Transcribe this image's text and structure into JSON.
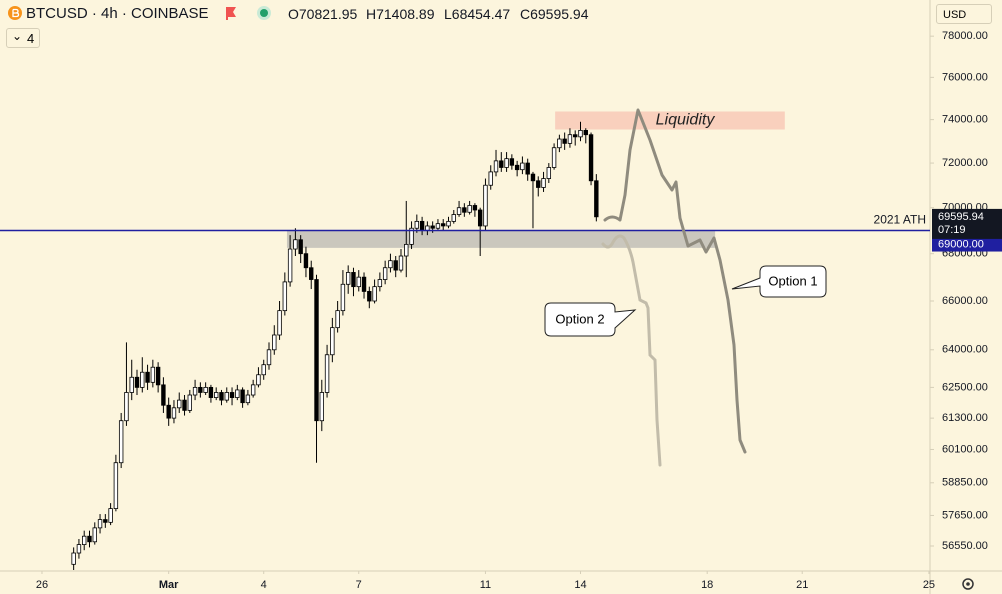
{
  "header": {
    "symbol": "BTCUSD · 4h · COINBASE",
    "open": "O70821.95",
    "high": "H71408.89",
    "low": "L68454.47",
    "close": "C69595.94",
    "indicators": "4",
    "currency": "USD"
  },
  "chart_data": {
    "type": "candlestick",
    "log_scale": true,
    "up_color": "#ffffff",
    "down_color": "#000000",
    "ylim": [
      55700,
      79800
    ],
    "yticks": [
      {
        "value": 78000,
        "label": "78000.00"
      },
      {
        "value": 76000,
        "label": "76000.00"
      },
      {
        "value": 74000,
        "label": "74000.00"
      },
      {
        "value": 72000,
        "label": "72000.00"
      },
      {
        "value": 70000,
        "label": "70000.00"
      },
      {
        "value": 68000,
        "label": "68000.00"
      },
      {
        "value": 66000,
        "label": "66000.00"
      },
      {
        "value": 64000,
        "label": "64000.00"
      },
      {
        "value": 62500,
        "label": "62500.00"
      },
      {
        "value": 61300,
        "label": "61300.00"
      },
      {
        "value": 60100,
        "label": "60100.00"
      },
      {
        "value": 58850,
        "label": "58850.00"
      },
      {
        "value": 57650,
        "label": "57650.00"
      },
      {
        "value": 56550,
        "label": "56550.00"
      }
    ],
    "xlim": [
      -7.95,
      168.2
    ],
    "xticks": [
      {
        "value": 0,
        "label": "26"
      },
      {
        "value": 24,
        "label": "Mar"
      },
      {
        "value": 42,
        "label": "4"
      },
      {
        "value": 60,
        "label": "7"
      },
      {
        "value": 84,
        "label": "11"
      },
      {
        "value": 102,
        "label": "14"
      },
      {
        "value": 126,
        "label": "18"
      },
      {
        "value": 144,
        "label": "21"
      },
      {
        "value": 168,
        "label": "25"
      }
    ],
    "x": [
      6,
      7,
      8,
      9,
      10,
      11,
      12,
      13,
      14,
      15,
      16,
      17,
      18,
      19,
      20,
      21,
      22,
      23,
      24,
      25,
      26,
      27,
      28,
      29,
      30,
      31,
      32,
      33,
      34,
      35,
      36,
      37,
      38,
      39,
      40,
      41,
      42,
      43,
      44,
      45,
      46,
      47,
      48,
      49,
      50,
      51,
      52,
      53,
      54,
      55,
      56,
      57,
      58,
      59,
      60,
      61,
      62,
      63,
      64,
      65,
      66,
      67,
      68,
      69,
      70,
      71,
      72,
      73,
      74,
      75,
      76,
      77,
      78,
      79,
      80,
      81,
      82,
      83,
      84,
      85,
      86,
      87,
      88,
      89,
      90,
      91,
      92,
      93,
      94,
      95,
      96,
      97,
      98,
      99,
      100,
      101,
      102,
      103,
      104,
      105
    ],
    "open": [
      55900,
      56300,
      56600,
      56900,
      56700,
      57200,
      57500,
      57400,
      57900,
      59600,
      61200,
      62300,
      62900,
      62500,
      63100,
      62700,
      63300,
      62600,
      61800,
      61300,
      61700,
      62000,
      61600,
      62200,
      62500,
      62300,
      62500,
      62100,
      62300,
      62000,
      62300,
      62100,
      62400,
      61900,
      62200,
      62600,
      63000,
      63400,
      64000,
      64600,
      65600,
      66800,
      68200,
      68600,
      68000,
      67400,
      66900,
      61200,
      62300,
      63800,
      64900,
      65600,
      66700,
      67200,
      66600,
      67000,
      66400,
      66000,
      66600,
      66900,
      67400,
      67700,
      67300,
      67900,
      68400,
      69100,
      69400,
      69000,
      69200,
      69100,
      69300,
      69200,
      69400,
      69700,
      70000,
      69800,
      70100,
      69900,
      69200,
      71000,
      71600,
      72100,
      71800,
      72200,
      71900,
      71700,
      72000,
      71500,
      71200,
      70900,
      71300,
      71800,
      72700,
      73100,
      72900,
      73300,
      73200,
      73500,
      73300,
      71200
    ],
    "high": [
      56500,
      56800,
      57100,
      57100,
      57400,
      57700,
      57700,
      58100,
      59900,
      61500,
      64300,
      63600,
      63200,
      63700,
      63400,
      63600,
      63500,
      62900,
      62100,
      62000,
      62300,
      62200,
      62400,
      62800,
      62700,
      62700,
      62600,
      62500,
      62400,
      62500,
      62500,
      62600,
      62500,
      62400,
      62800,
      63300,
      63600,
      64300,
      65000,
      66000,
      67200,
      68800,
      69100,
      68800,
      68300,
      67700,
      67100,
      62800,
      64200,
      65300,
      66000,
      67300,
      67500,
      67400,
      67300,
      67200,
      66600,
      66900,
      67200,
      67700,
      68000,
      67900,
      68200,
      70300,
      69400,
      69700,
      69600,
      69400,
      69400,
      69500,
      69500,
      69600,
      69900,
      70300,
      70200,
      70300,
      70200,
      70000,
      71300,
      71900,
      72600,
      72500,
      72500,
      72400,
      72100,
      72300,
      72200,
      71600,
      71400,
      71600,
      72000,
      72900,
      73300,
      73400,
      73600,
      73500,
      73900,
      73600,
      73400,
      71500
    ],
    "low": [
      55700,
      56100,
      56400,
      56500,
      56600,
      57000,
      57200,
      57300,
      57800,
      59400,
      61000,
      62000,
      62200,
      62300,
      62400,
      62500,
      62300,
      61500,
      61000,
      61100,
      61500,
      61400,
      61500,
      62000,
      62100,
      62200,
      61900,
      62000,
      61800,
      61900,
      61800,
      62000,
      61700,
      61800,
      62100,
      62500,
      62800,
      63200,
      63800,
      64400,
      65400,
      66600,
      67900,
      67600,
      67000,
      66500,
      59600,
      60800,
      62100,
      63500,
      64700,
      65400,
      66300,
      66200,
      66400,
      66100,
      65700,
      65900,
      66400,
      66700,
      67200,
      67000,
      67200,
      67000,
      68200,
      68900,
      68800,
      68800,
      68900,
      69000,
      69000,
      69100,
      69300,
      69600,
      69600,
      69700,
      69600,
      67900,
      69000,
      70800,
      71400,
      71600,
      71600,
      71700,
      71400,
      71500,
      71200,
      69100,
      70500,
      70700,
      71100,
      71700,
      72500,
      72600,
      72700,
      72800,
      73000,
      72900,
      71000,
      69400
    ],
    "close": [
      56300,
      56600,
      56900,
      56700,
      57200,
      57500,
      57400,
      57900,
      59600,
      61200,
      62300,
      62900,
      62500,
      63100,
      62700,
      63300,
      62600,
      61800,
      61300,
      61700,
      62000,
      61600,
      62200,
      62500,
      62300,
      62500,
      62100,
      62300,
      62000,
      62300,
      62100,
      62400,
      61900,
      62200,
      62600,
      63000,
      63400,
      64000,
      64600,
      65600,
      66800,
      68200,
      68600,
      68000,
      67400,
      66900,
      61200,
      62300,
      63800,
      64900,
      65600,
      66700,
      67200,
      66600,
      67000,
      66400,
      66000,
      66600,
      66900,
      67400,
      67700,
      67300,
      67900,
      68400,
      69100,
      69400,
      69000,
      69200,
      69100,
      69300,
      69200,
      69400,
      69700,
      70000,
      69800,
      70100,
      69900,
      69200,
      71000,
      71600,
      72100,
      71800,
      72200,
      71900,
      71700,
      72000,
      71500,
      71200,
      70900,
      71300,
      71800,
      72700,
      73100,
      72900,
      73300,
      73200,
      73500,
      73300,
      71200,
      69600
    ],
    "hline": {
      "value": 69000,
      "label": "2021 ATH",
      "axis_label": "69000.00",
      "color": "#1f1fa0"
    },
    "last_price": {
      "value": 69595.94,
      "label": "69595.94",
      "countdown": "07:19"
    },
    "zones": [
      {
        "x": [
          46.4,
          127.5
        ],
        "y": [
          68250,
          69000
        ],
        "color": "#a9a9a9"
      },
      {
        "x": [
          97.2,
          140.7
        ],
        "y": [
          73540,
          74380
        ],
        "color": "#f7b8a8",
        "label": "Liquidity"
      }
    ],
    "callouts": [
      "Option 1",
      "Option 2"
    ]
  }
}
